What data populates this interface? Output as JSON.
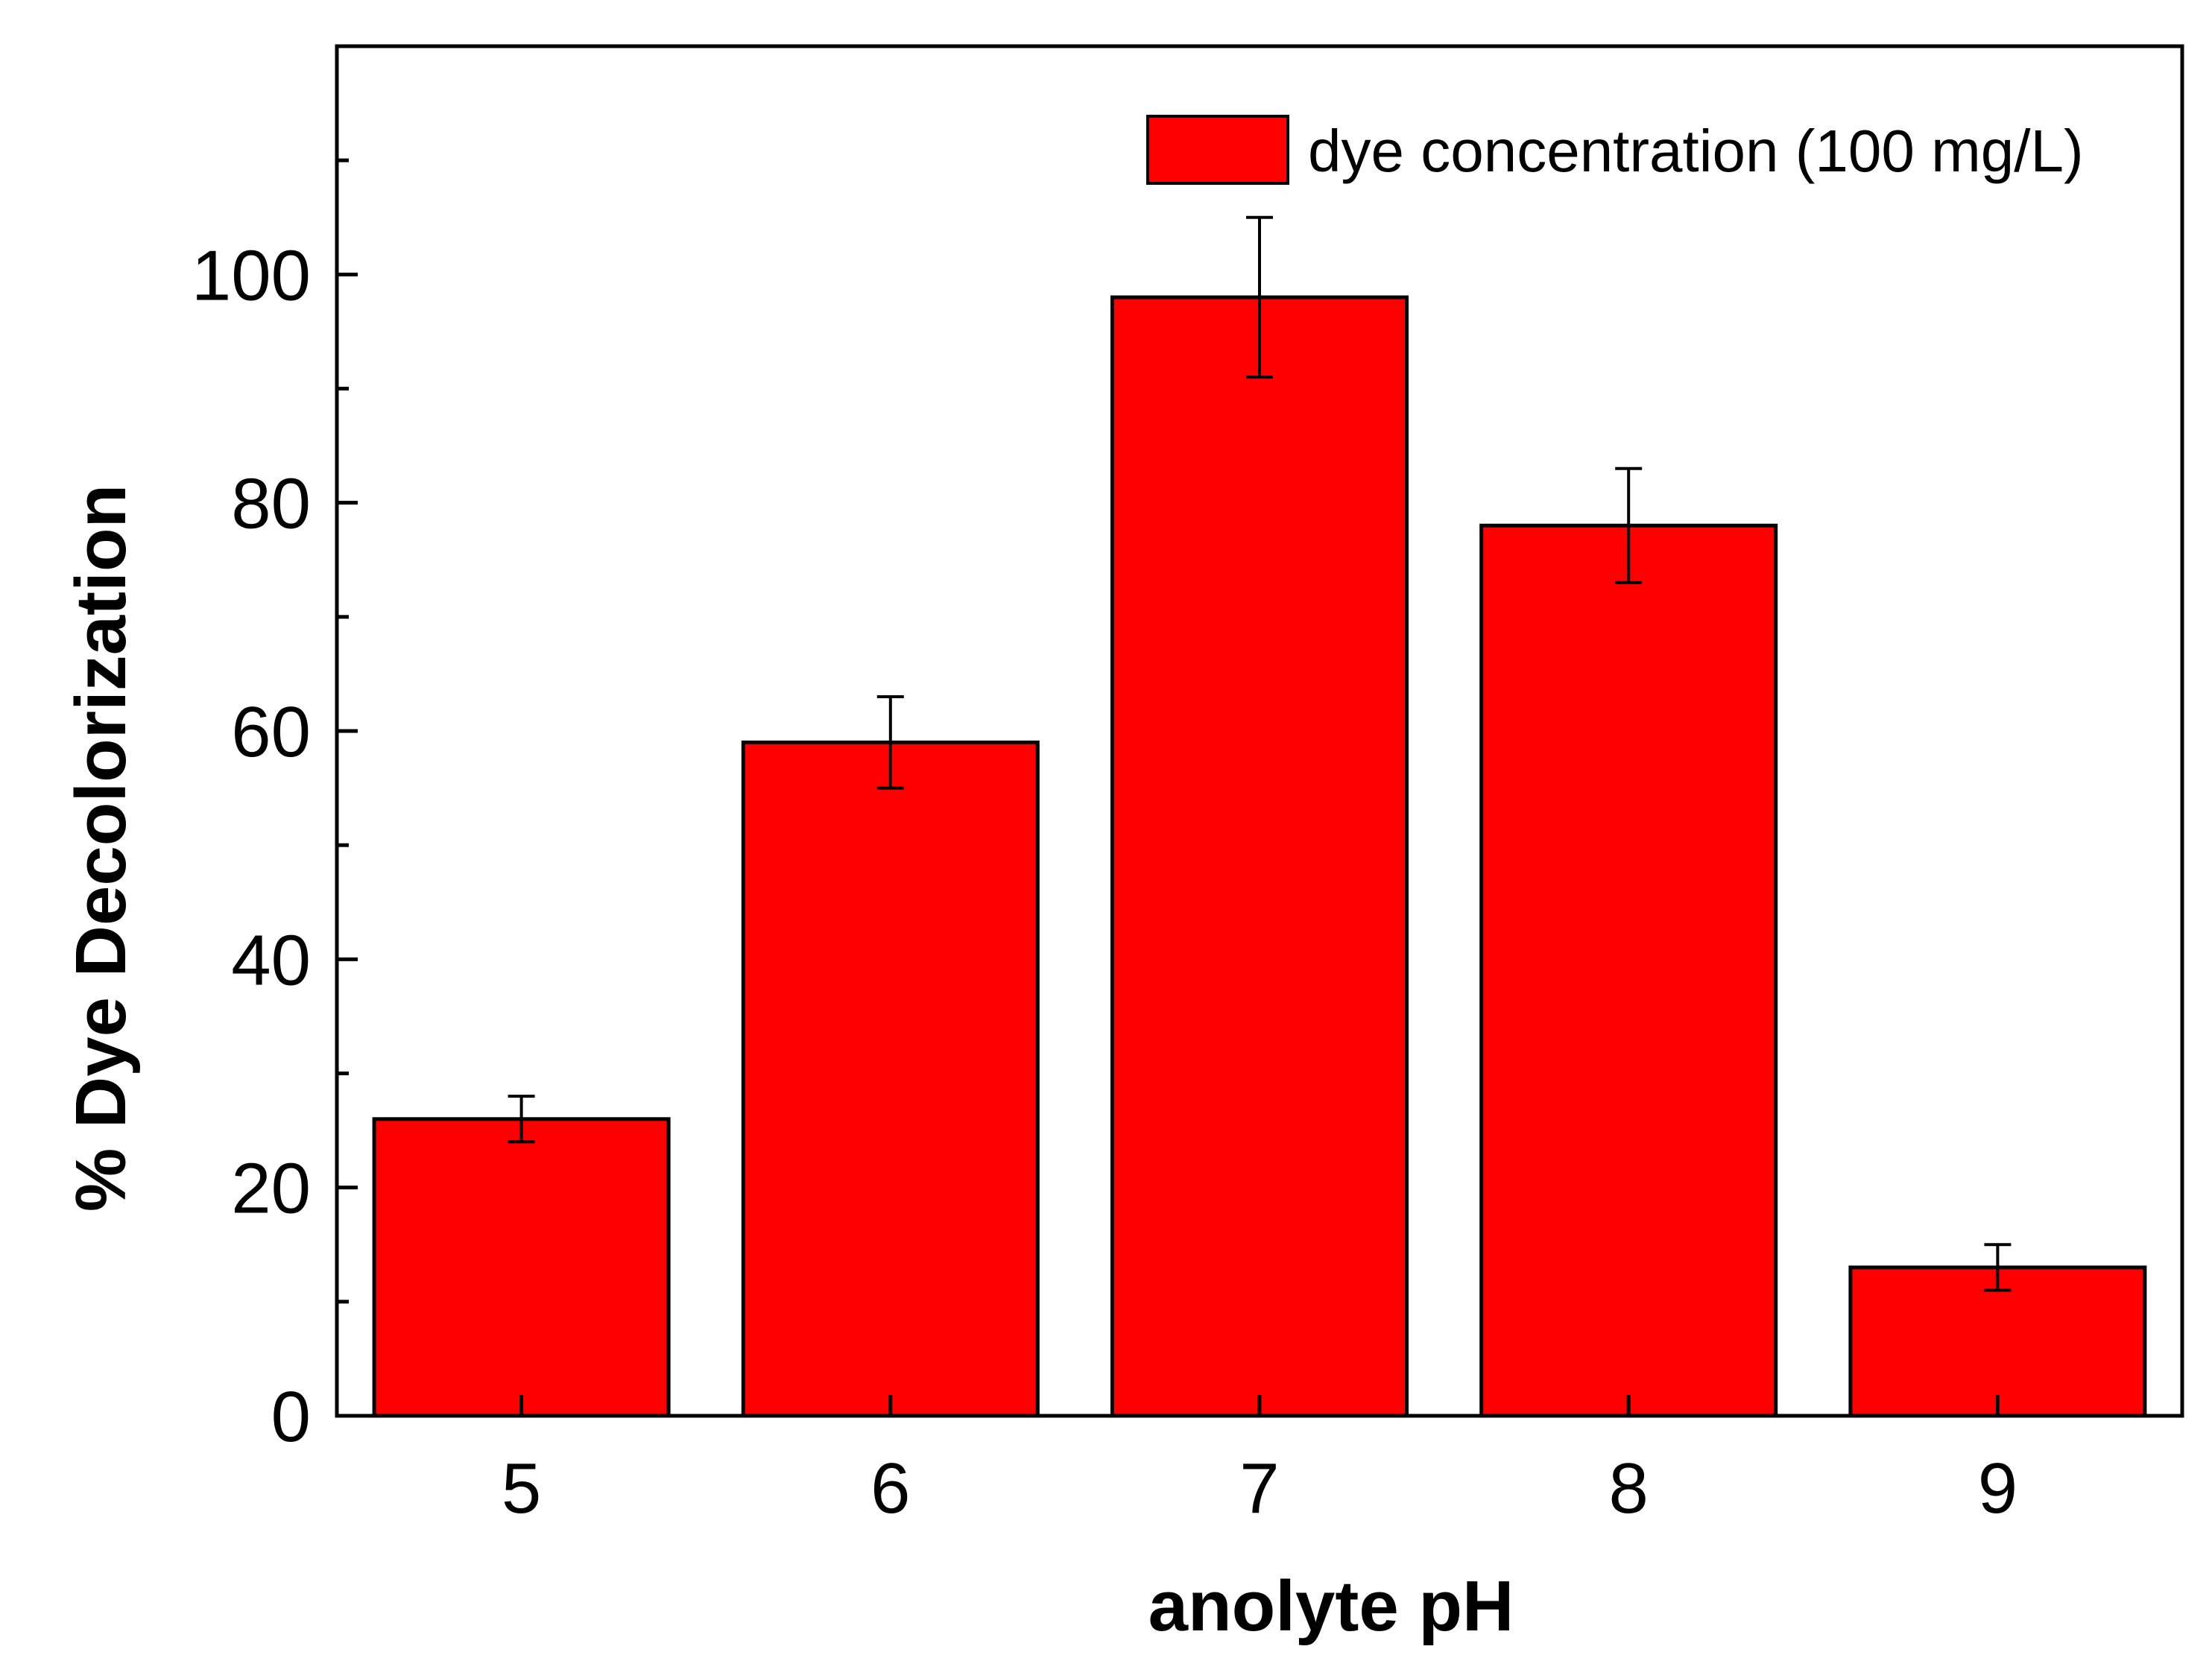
{
  "colors": {
    "bar_fill": "#ff0000",
    "bar_stroke": "#000000",
    "axis": "#000000"
  },
  "chart_data": {
    "type": "bar",
    "title": "",
    "xlabel": "anolyte pH",
    "ylabel": "% Dye Decolorization",
    "categories": [
      "5",
      "6",
      "7",
      "8",
      "9"
    ],
    "series": [
      {
        "name": "dye concentration (100 mg/L)",
        "values": [
          26,
          59,
          98,
          78,
          13
        ],
        "errors": [
          2,
          4,
          7,
          5,
          2
        ]
      }
    ],
    "ylim": [
      0,
      120
    ],
    "yticks": [
      0,
      20,
      40,
      60,
      80,
      100
    ],
    "yticks_minor": [
      10,
      30,
      50,
      70,
      90,
      110
    ],
    "legend_position": "top-right",
    "grid": false
  }
}
